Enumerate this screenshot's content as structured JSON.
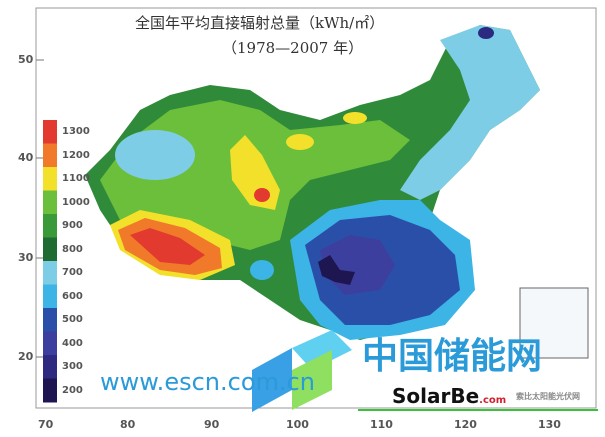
{
  "title": {
    "line1": "全国年平均直接辐射总量（kWh/㎡）",
    "line2": "（1978—2007 年）"
  },
  "axes": {
    "x_ticks": [
      "70",
      "80",
      "90",
      "100",
      "110",
      "120",
      "130"
    ],
    "y_ticks": [
      "50",
      "40",
      "30",
      "20"
    ]
  },
  "legend": {
    "items": [
      {
        "label": "1300",
        "color": "#e23a2e"
      },
      {
        "label": "1200",
        "color": "#f07a2a"
      },
      {
        "label": "1100",
        "color": "#f2e02a"
      },
      {
        "label": "1000",
        "color": "#6cbf3a"
      },
      {
        "label": "900",
        "color": "#3a9a3a"
      },
      {
        "label": "800",
        "color": "#1f6b32"
      },
      {
        "label": "700",
        "color": "#7ecde6"
      },
      {
        "label": "600",
        "color": "#3cb4e6"
      },
      {
        "label": "500",
        "color": "#2a4fa8"
      },
      {
        "label": "400",
        "color": "#3d3f9e"
      },
      {
        "label": "300",
        "color": "#2e2a80"
      },
      {
        "label": "200",
        "color": "#1e1650"
      }
    ]
  },
  "watermark": {
    "cn_text": "中国储能网",
    "brand": "SolarBe",
    "brand_suffix": ".com",
    "brand_sub": "索比太阳能光伏网",
    "url": "www.escn.com.cn"
  }
}
